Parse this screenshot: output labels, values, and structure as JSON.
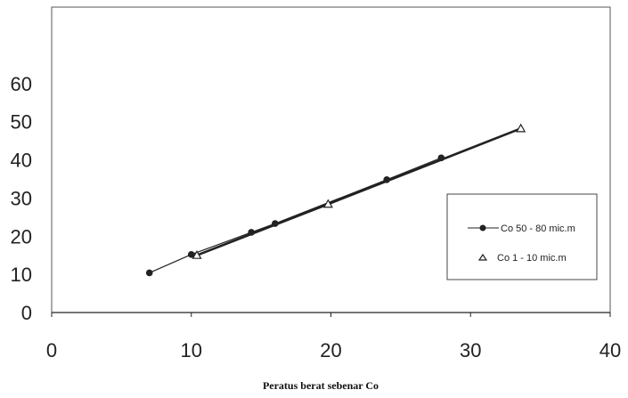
{
  "chart_data": {
    "type": "scatter",
    "title": "",
    "xlabel": "Peratus berat sebenar Co",
    "ylabel": "",
    "xlim": [
      0,
      40
    ],
    "ylim": [
      0,
      80
    ],
    "x_ticks": [
      0,
      10,
      20,
      30,
      40
    ],
    "y_ticks": [
      0,
      10,
      20,
      30,
      40,
      50,
      60
    ],
    "x_tick_labels": [
      "0",
      "10",
      "20",
      "30",
      "40"
    ],
    "y_tick_labels": [
      "0",
      "10",
      "20",
      "30",
      "40",
      "50",
      "60"
    ],
    "grid": false,
    "legend_position": "right",
    "series": [
      {
        "name": "Co 50 - 80 mic.m",
        "marker": "circle",
        "color": "#222222",
        "x": [
          7.0,
          10.0,
          14.3,
          16.0,
          24.0,
          27.9
        ],
        "y": [
          10.4,
          15.2,
          21.0,
          23.3,
          34.8,
          40.5
        ]
      },
      {
        "name": "Co 1 - 10 mic.m",
        "marker": "triangle",
        "color": "#222222",
        "x": [
          10.4,
          19.8,
          33.6
        ],
        "y": [
          15.0,
          28.4,
          48.2
        ]
      }
    ]
  }
}
